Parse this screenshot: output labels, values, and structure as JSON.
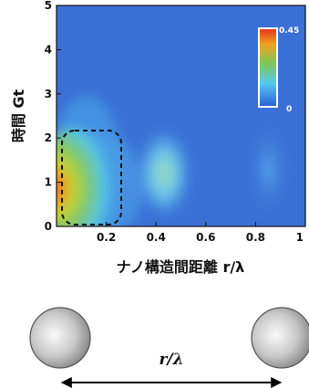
{
  "chart_data": {
    "type": "heatmap",
    "x_label": "ナノ構造間距離 r/λ",
    "y_label": "時間 Gt",
    "xlim": [
      0,
      1
    ],
    "ylim": [
      0,
      5
    ],
    "xticks": [
      0.2,
      0.4,
      0.6,
      0.8,
      1
    ],
    "yticks": [
      0,
      1,
      2,
      3,
      4,
      5
    ],
    "colorbar": {
      "min": 0,
      "max": 0.45
    }
  },
  "diagram": {
    "label": "r/λ"
  }
}
